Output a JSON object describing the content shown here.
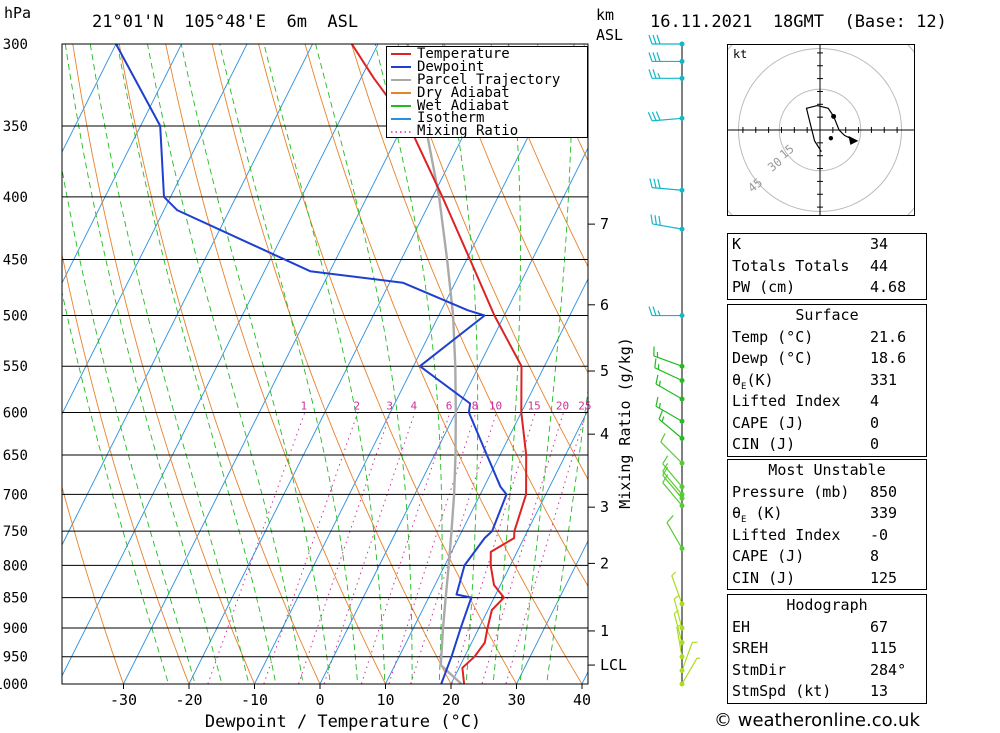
{
  "header": {
    "pressure_unit": "hPa",
    "location": "21°01'N  105°48'E  6m  ASL",
    "height_unit_top": "km",
    "height_unit_bottom": "ASL",
    "datetime": "16.11.2021  18GMT  (Base: 12)"
  },
  "chart_data": {
    "type": "line",
    "xlabel": "Dewpoint / Temperature (°C)",
    "ylabel": "hPa",
    "secondary_ylabel": "Mixing Ratio (g/kg)",
    "xlim": [
      -40,
      40
    ],
    "ylim": [
      1000,
      300
    ],
    "y_log_scale": true,
    "x_ticks": [
      -30,
      -20,
      -10,
      0,
      10,
      20,
      30,
      40
    ],
    "pressure_ticks": [
      300,
      350,
      400,
      450,
      500,
      550,
      600,
      650,
      700,
      750,
      800,
      850,
      900,
      950,
      1000
    ],
    "km_ticks": [
      {
        "label": "7",
        "p": 421
      },
      {
        "label": "6",
        "p": 490
      },
      {
        "label": "5",
        "p": 555
      },
      {
        "label": "4",
        "p": 625
      },
      {
        "label": "3",
        "p": 717
      },
      {
        "label": "2",
        "p": 797
      },
      {
        "label": "1",
        "p": 905
      },
      {
        "label": "LCL",
        "p": 965
      }
    ],
    "mixing_ratio_labels": [
      "1",
      "2",
      "3",
      "4",
      "6",
      "8",
      "10",
      "15",
      "20",
      "25"
    ],
    "legend": {
      "placement": "top-right",
      "entries": [
        {
          "name": "Temperature",
          "color": "#dd2222",
          "style": "solid"
        },
        {
          "name": "Dewpoint",
          "color": "#1f3fd0",
          "style": "solid"
        },
        {
          "name": "Parcel Trajectory",
          "color": "#aaaaaa",
          "style": "solid"
        },
        {
          "name": "Dry Adiabat",
          "color": "#e8822a",
          "style": "solid"
        },
        {
          "name": "Wet Adiabat",
          "color": "#22bb22",
          "style": "solid"
        },
        {
          "name": "Isotherm",
          "color": "#2a8fe0",
          "style": "solid"
        },
        {
          "name": "Mixing Ratio",
          "color": "#cc3399",
          "style": "dotted"
        }
      ]
    },
    "series": [
      {
        "name": "Temperature",
        "points": [
          [
            1000,
            22.0
          ],
          [
            970,
            20.5
          ],
          [
            950,
            21.5
          ],
          [
            925,
            22.0
          ],
          [
            900,
            21.3
          ],
          [
            870,
            20.6
          ],
          [
            850,
            21.5
          ],
          [
            830,
            19.0
          ],
          [
            800,
            17.0
          ],
          [
            780,
            16.0
          ],
          [
            760,
            18.5
          ],
          [
            750,
            18.0
          ],
          [
            700,
            17.0
          ],
          [
            650,
            14.0
          ],
          [
            600,
            10.0
          ],
          [
            550,
            6.5
          ],
          [
            500,
            -1.5
          ],
          [
            450,
            -9.5
          ],
          [
            400,
            -18.5
          ],
          [
            350,
            -29.0
          ],
          [
            320,
            -38.0
          ],
          [
            300,
            -44.0
          ]
        ]
      },
      {
        "name": "Dewpoint",
        "points": [
          [
            1000,
            18.5
          ],
          [
            950,
            18.0
          ],
          [
            900,
            17.2
          ],
          [
            850,
            16.5
          ],
          [
            845,
            14.0
          ],
          [
            800,
            13.0
          ],
          [
            760,
            14.0
          ],
          [
            750,
            14.6
          ],
          [
            700,
            14.0
          ],
          [
            690,
            12.5
          ],
          [
            650,
            8.0
          ],
          [
            600,
            2.0
          ],
          [
            590,
            1.5
          ],
          [
            550,
            -9.0
          ],
          [
            500,
            -3.0
          ],
          [
            495,
            -6.0
          ],
          [
            470,
            -18.0
          ],
          [
            460,
            -33.0
          ],
          [
            410,
            -58.0
          ],
          [
            400,
            -61.0
          ],
          [
            350,
            -67.0
          ],
          [
            300,
            -80.0
          ]
        ]
      },
      {
        "name": "Parcel Trajectory",
        "points": [
          [
            1000,
            21.6
          ],
          [
            965,
            17.0
          ],
          [
            900,
            14.5
          ],
          [
            850,
            12.6
          ],
          [
            800,
            10.6
          ],
          [
            750,
            8.4
          ],
          [
            700,
            6.0
          ],
          [
            650,
            3.2
          ],
          [
            600,
            0.0
          ],
          [
            550,
            -3.6
          ],
          [
            500,
            -7.8
          ],
          [
            450,
            -13.0
          ],
          [
            400,
            -19.0
          ],
          [
            350,
            -26.5
          ],
          [
            300,
            -35.5
          ]
        ]
      }
    ],
    "wind_barbs": [
      {
        "p": 300,
        "dir": 270,
        "kt": 30
      },
      {
        "p": 310,
        "dir": 270,
        "kt": 30
      },
      {
        "p": 320,
        "dir": 270,
        "kt": 25
      },
      {
        "p": 345,
        "dir": 265,
        "kt": 30
      },
      {
        "p": 395,
        "dir": 275,
        "kt": 30
      },
      {
        "p": 425,
        "dir": 280,
        "kt": 30
      },
      {
        "p": 500,
        "dir": 270,
        "kt": 25
      },
      {
        "p": 550,
        "dir": 290,
        "kt": 15
      },
      {
        "p": 565,
        "dir": 295,
        "kt": 15
      },
      {
        "p": 585,
        "dir": 300,
        "kt": 15
      },
      {
        "p": 610,
        "dir": 300,
        "kt": 15
      },
      {
        "p": 630,
        "dir": 310,
        "kt": 15
      },
      {
        "p": 660,
        "dir": 315,
        "kt": 10
      },
      {
        "p": 690,
        "dir": 320,
        "kt": 10
      },
      {
        "p": 700,
        "dir": 320,
        "kt": 10
      },
      {
        "p": 705,
        "dir": 320,
        "kt": 10
      },
      {
        "p": 715,
        "dir": 320,
        "kt": 10
      },
      {
        "p": 775,
        "dir": 330,
        "kt": 10
      },
      {
        "p": 860,
        "dir": 340,
        "kt": 5
      },
      {
        "p": 900,
        "dir": 345,
        "kt": 5
      },
      {
        "p": 925,
        "dir": 345,
        "kt": 5
      },
      {
        "p": 950,
        "dir": 350,
        "kt": 5
      },
      {
        "p": 975,
        "dir": 20,
        "kt": 5
      },
      {
        "p": 1000,
        "dir": 30,
        "kt": 5
      }
    ]
  },
  "hodograph": {
    "unit": "kt",
    "ring_labels": [
      "15",
      "30",
      "45"
    ],
    "points": [
      [
        0.5,
        -8
      ],
      [
        -2,
        -4
      ],
      [
        -4,
        4
      ],
      [
        -5,
        8
      ],
      [
        -1,
        9
      ],
      [
        3,
        8
      ],
      [
        5,
        5
      ],
      [
        7,
        0
      ],
      [
        9,
        -2
      ],
      [
        13,
        -4
      ]
    ],
    "storm_motion": [
      4,
      -3
    ]
  },
  "indices": {
    "k_label": "K",
    "k_value": "34",
    "tt_label": "Totals Totals",
    "tt_value": "44",
    "pw_label": "PW (cm)",
    "pw_value": "4.68"
  },
  "surface": {
    "title": "Surface",
    "temp_label": "Temp (°C)",
    "temp_value": "21.6",
    "dewp_label": "Dewp (°C)",
    "dewp_value": "18.6",
    "theta_label_main": "θ",
    "theta_label_sub": "E",
    "theta_label_unit": "(K)",
    "theta_value": "331",
    "li_label": "Lifted Index",
    "li_value": "4",
    "cape_label": "CAPE (J)",
    "cape_value": "0",
    "cin_label": "CIN (J)",
    "cin_value": "0"
  },
  "most_unstable": {
    "title": "Most Unstable",
    "pressure_label": "Pressure (mb)",
    "pressure_value": "850",
    "theta_label_main": "θ",
    "theta_label_sub": "E",
    "theta_label_unit": " (K)",
    "theta_value": "339",
    "li_label": "Lifted Index",
    "li_value": "-0",
    "cape_label": "CAPE (J)",
    "cape_value": "8",
    "cin_label": "CIN (J)",
    "cin_value": "125"
  },
  "hodograph_table": {
    "title": "Hodograph",
    "eh_label": "EH",
    "eh_value": "67",
    "sreh_label": "SREH",
    "sreh_value": "115",
    "stmdir_label": "StmDir",
    "stmdir_value": "284°",
    "stmspd_label": "StmSpd (kt)",
    "stmspd_value": "13"
  },
  "footer": {
    "copyright": "© weatheronline.co.uk"
  }
}
